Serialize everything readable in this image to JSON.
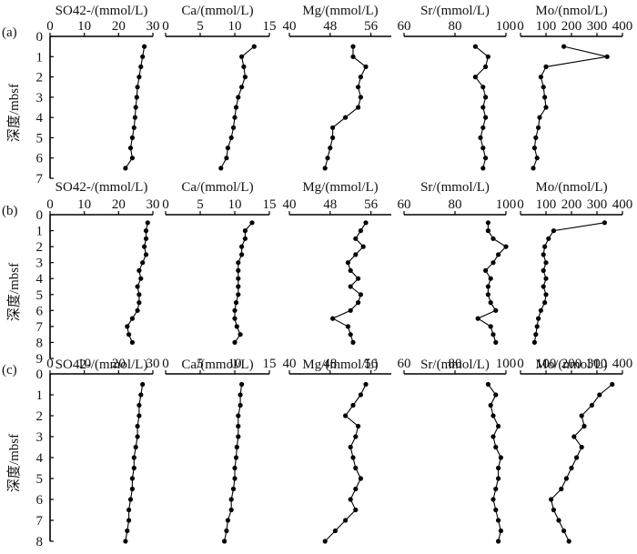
{
  "figure": {
    "depth_axis_label": "深度/mbsf",
    "panel_labels": [
      "(a)",
      "(b)",
      "(c)"
    ]
  },
  "chart_data": [
    {
      "type": "line",
      "panel": "(a)",
      "ylim": [
        0,
        7
      ],
      "yticks": [
        0,
        1,
        2,
        3,
        4,
        5,
        6,
        7
      ],
      "ylabel": "深度/mbsf",
      "subplots": [
        {
          "xlabel": "SO42-/(mmol/L)",
          "xlim": [
            0,
            30
          ],
          "xticks": [
            0,
            10,
            20,
            30
          ],
          "depth": [
            0.5,
            1.0,
            1.5,
            2.0,
            2.5,
            3.0,
            3.5,
            4.0,
            4.5,
            5.0,
            5.5,
            6.0,
            6.5
          ],
          "values": [
            27.5,
            27.0,
            26.5,
            26.0,
            25.5,
            25.3,
            25.0,
            24.8,
            24.5,
            24.0,
            23.5,
            24.0,
            22.0
          ]
        },
        {
          "xlabel": "Ca/(mmol/L)",
          "xlim": [
            0,
            15
          ],
          "xticks": [
            0,
            5,
            10,
            15
          ],
          "depth": [
            0.5,
            1.0,
            1.5,
            2.0,
            2.5,
            3.0,
            3.5,
            4.0,
            4.5,
            5.0,
            5.5,
            6.0,
            6.5
          ],
          "values": [
            12.8,
            11.0,
            11.3,
            11.5,
            11.0,
            10.5,
            10.2,
            10.0,
            9.8,
            9.5,
            9.0,
            8.8,
            8.0
          ]
        },
        {
          "xlabel": "Mg/(mmol/L)",
          "xlim": [
            40,
            60
          ],
          "xticks": [
            40,
            48,
            56
          ],
          "depth": [
            0.5,
            1.0,
            1.5,
            2.0,
            2.5,
            3.0,
            3.5,
            4.0,
            4.5,
            5.0,
            5.5,
            6.0,
            6.5
          ],
          "values": [
            52.5,
            52.5,
            55.0,
            54.0,
            53.5,
            54.0,
            53.5,
            51.0,
            48.5,
            48.5,
            48.0,
            47.5,
            47.0
          ]
        },
        {
          "xlabel": "Sr/(mmol/L)",
          "xlim": [
            60,
            100
          ],
          "xticks": [
            60,
            80,
            100
          ],
          "depth": [
            0.5,
            1.0,
            1.5,
            2.0,
            2.5,
            3.0,
            3.5,
            4.0,
            4.5,
            5.0,
            5.5,
            6.0,
            6.5
          ],
          "values": [
            88,
            93,
            92,
            88,
            91,
            92,
            91,
            92,
            91,
            90,
            91,
            92,
            91
          ]
        },
        {
          "xlabel": "Mo/(nmol/L)",
          "xlim": [
            0,
            400
          ],
          "xticks": [
            0,
            100,
            200,
            300,
            400
          ],
          "depth": [
            0.5,
            1.0,
            1.5,
            2.0,
            2.5,
            3.0,
            3.5,
            4.0,
            4.5,
            5.0,
            5.5,
            6.0,
            6.5
          ],
          "values": [
            170,
            340,
            100,
            80,
            90,
            95,
            100,
            75,
            70,
            60,
            55,
            65,
            50
          ]
        }
      ]
    },
    {
      "type": "line",
      "panel": "(b)",
      "ylim": [
        0,
        9
      ],
      "yticks": [
        0,
        1,
        2,
        3,
        4,
        5,
        6,
        7,
        8,
        9
      ],
      "ylabel": "深度/mbsf",
      "subplots": [
        {
          "xlabel": "SO42-/(mmol/L)",
          "xlim": [
            0,
            30
          ],
          "xticks": [
            0,
            10,
            20,
            30
          ],
          "depth": [
            0.5,
            1.0,
            1.5,
            2.0,
            2.5,
            3.0,
            3.5,
            4.0,
            4.5,
            5.0,
            5.5,
            6.0,
            6.5,
            7.0,
            7.5,
            8.0
          ],
          "values": [
            28.5,
            28.0,
            28.0,
            27.5,
            28.0,
            27.0,
            26.0,
            26.5,
            25.5,
            26.0,
            26.0,
            25.5,
            24.0,
            22.5,
            23.0,
            24.0
          ]
        },
        {
          "xlabel": "Ca/(mmol/L)",
          "xlim": [
            0,
            15
          ],
          "xticks": [
            0,
            5,
            10,
            15
          ],
          "depth": [
            0.5,
            1.0,
            1.5,
            2.0,
            2.5,
            3.0,
            3.5,
            4.0,
            4.5,
            5.0,
            5.5,
            6.0,
            6.5,
            7.0,
            7.5,
            8.0
          ],
          "values": [
            12.5,
            11.5,
            11.5,
            11.0,
            11.0,
            10.5,
            10.5,
            10.5,
            10.5,
            10.5,
            10.2,
            10.0,
            10.0,
            10.3,
            10.8,
            10.0
          ]
        },
        {
          "xlabel": "Mg/(mmol/L)",
          "xlim": [
            40,
            60
          ],
          "xticks": [
            40,
            48,
            56
          ],
          "depth": [
            0.5,
            1.0,
            1.5,
            2.0,
            2.5,
            3.0,
            3.5,
            4.0,
            4.5,
            5.0,
            5.5,
            6.0,
            6.5,
            7.0,
            7.5,
            8.0
          ],
          "values": [
            55.0,
            54.0,
            53.0,
            54.5,
            53.0,
            51.5,
            52.0,
            53.5,
            52.0,
            54.0,
            53.5,
            52.0,
            48.5,
            51.5,
            52.0,
            52.5
          ]
        },
        {
          "xlabel": "Sr/(mmol/L)",
          "xlim": [
            60,
            100
          ],
          "xticks": [
            60,
            80,
            100
          ],
          "depth": [
            0.5,
            1.0,
            1.5,
            2.0,
            2.5,
            3.0,
            3.5,
            4.0,
            4.5,
            5.0,
            5.5,
            6.0,
            6.5,
            7.0,
            7.5,
            8.0
          ],
          "values": [
            93,
            93,
            95,
            100,
            97,
            95,
            92,
            94,
            93,
            93,
            94,
            96,
            89,
            94,
            95,
            96
          ]
        },
        {
          "xlabel": "Mo/(nmol/L)",
          "xlim": [
            0,
            400
          ],
          "xticks": [
            0,
            100,
            200,
            300,
            400
          ],
          "depth": [
            0.5,
            1.0,
            1.5,
            2.0,
            2.5,
            3.0,
            3.5,
            4.0,
            4.5,
            5.0,
            5.5,
            6.0,
            6.5,
            7.0,
            7.5,
            8.0
          ],
          "values": [
            330,
            130,
            110,
            95,
            90,
            100,
            90,
            100,
            90,
            100,
            95,
            80,
            70,
            65,
            60,
            55
          ]
        }
      ]
    },
    {
      "type": "line",
      "panel": "(c)",
      "ylim": [
        0,
        8
      ],
      "yticks": [
        0,
        1,
        2,
        3,
        4,
        5,
        6,
        7,
        8
      ],
      "ylabel": "深度/mbsf",
      "subplots": [
        {
          "xlabel": "SO42-/(mmol/L)",
          "xlim": [
            0,
            30
          ],
          "xticks": [
            0,
            10,
            20,
            30
          ],
          "depth": [
            0.5,
            1.0,
            1.5,
            2.0,
            2.5,
            3.0,
            3.5,
            4.0,
            4.5,
            5.0,
            5.5,
            6.0,
            6.5,
            7.0,
            7.5,
            8.0
          ],
          "values": [
            27.0,
            26.5,
            26.0,
            26.0,
            25.5,
            25.5,
            25.0,
            24.5,
            24.5,
            24.0,
            24.0,
            23.5,
            23.0,
            23.0,
            22.5,
            22.0
          ]
        },
        {
          "xlabel": "Ca/(mmol/L)",
          "xlim": [
            0,
            15
          ],
          "xticks": [
            0,
            5,
            10,
            15
          ],
          "depth": [
            0.5,
            1.0,
            1.5,
            2.0,
            2.5,
            3.0,
            3.5,
            4.0,
            4.5,
            5.0,
            5.5,
            6.0,
            6.5,
            7.0,
            7.5,
            8.0
          ],
          "values": [
            11.0,
            10.8,
            10.8,
            10.5,
            10.5,
            10.5,
            10.3,
            10.2,
            10.0,
            10.0,
            9.8,
            9.5,
            9.5,
            9.0,
            8.8,
            8.5
          ]
        },
        {
          "xlabel": "Mg/(mmol/L)",
          "xlim": [
            40,
            60
          ],
          "xticks": [
            40,
            48,
            56
          ],
          "depth": [
            0.5,
            1.0,
            1.5,
            2.0,
            2.5,
            3.0,
            3.5,
            4.0,
            4.5,
            5.0,
            5.5,
            6.0,
            6.5,
            7.0,
            7.5,
            8.0
          ],
          "values": [
            55.0,
            54.0,
            52.5,
            51.0,
            53.5,
            53.0,
            52.0,
            52.5,
            53.0,
            54.0,
            53.0,
            52.0,
            53.0,
            51.0,
            49.0,
            47.0
          ]
        },
        {
          "xlabel": "Sr/(mmol/L)",
          "xlim": [
            60,
            100
          ],
          "xticks": [
            60,
            80,
            100
          ],
          "depth": [
            0.5,
            1.0,
            1.5,
            2.0,
            2.5,
            3.0,
            3.5,
            4.0,
            4.5,
            5.0,
            5.5,
            6.0,
            6.5,
            7.0,
            7.5,
            8.0
          ],
          "values": [
            93,
            96,
            94,
            95,
            97,
            95,
            96,
            98,
            97,
            97,
            96,
            95,
            96,
            97,
            98,
            97
          ]
        },
        {
          "xlabel": "Mo/(nmol/L)",
          "xlim": [
            0,
            400
          ],
          "xticks": [
            0,
            100,
            200,
            300,
            400
          ],
          "depth": [
            0.5,
            1.0,
            1.5,
            2.0,
            2.5,
            3.0,
            3.5,
            4.0,
            4.5,
            5.0,
            5.5,
            6.0,
            6.5,
            7.0,
            7.5,
            8.0
          ],
          "values": [
            360,
            310,
            280,
            240,
            250,
            210,
            240,
            220,
            200,
            180,
            160,
            120,
            130,
            150,
            170,
            190
          ]
        }
      ]
    }
  ]
}
